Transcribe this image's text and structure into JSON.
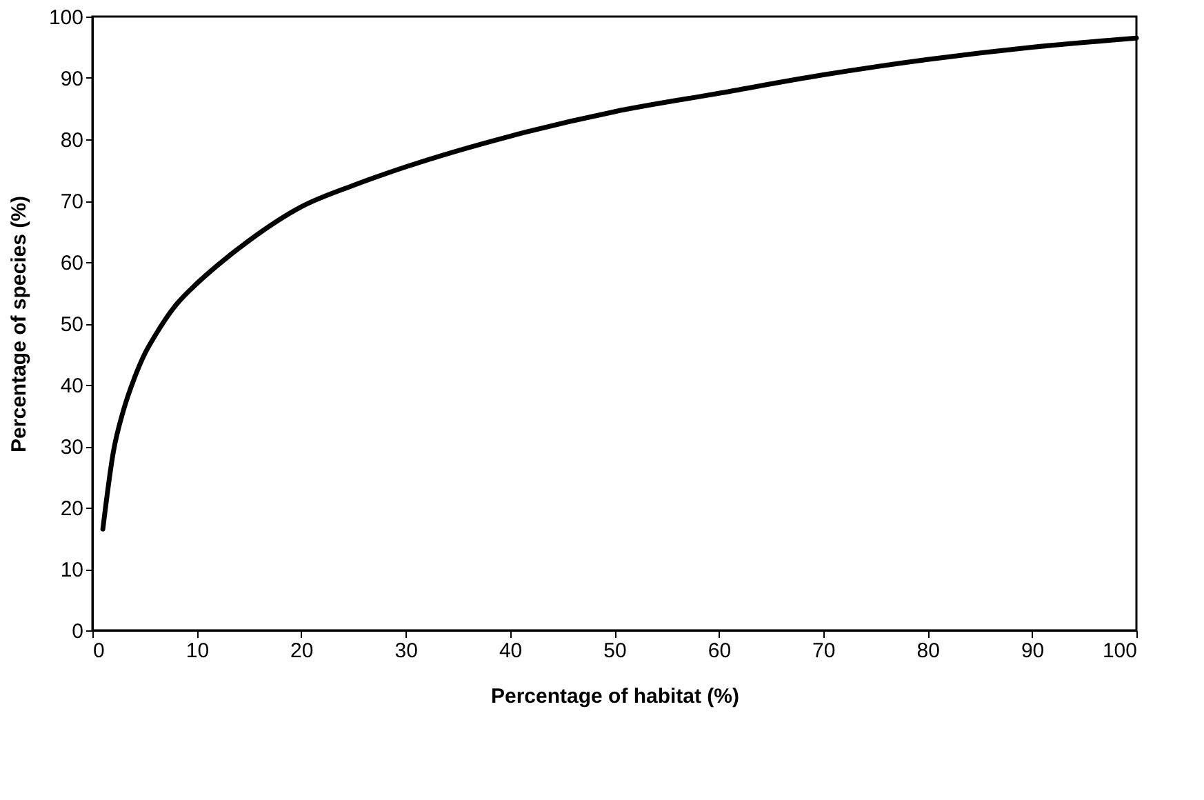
{
  "chart_data": {
    "type": "line",
    "xlabel": "Percentage of habitat (%)",
    "ylabel": "Percentage of species (%)",
    "x": [
      1,
      2,
      3,
      4,
      5,
      6,
      8,
      10,
      12,
      15,
      20,
      25,
      30,
      40,
      50,
      60,
      70,
      80,
      90,
      100
    ],
    "series": [
      {
        "color": "#000000",
        "values": [
          16.5,
          29,
          36,
          41,
          45,
          48,
          53,
          56.5,
          59.5,
          63.5,
          69,
          72.5,
          75.5,
          80.5,
          84.5,
          87.5,
          90.5,
          93,
          95,
          96.5
        ]
      }
    ],
    "xlim": [
      0,
      100
    ],
    "xticks": [
      0,
      10,
      20,
      30,
      40,
      50,
      60,
      70,
      80,
      90,
      100
    ],
    "ylim": [
      0,
      100
    ],
    "yticks": [
      0,
      10,
      20,
      30,
      40,
      50,
      60,
      70,
      80,
      90,
      100
    ],
    "grid": false,
    "marker": "none",
    "line_style": "solid"
  }
}
